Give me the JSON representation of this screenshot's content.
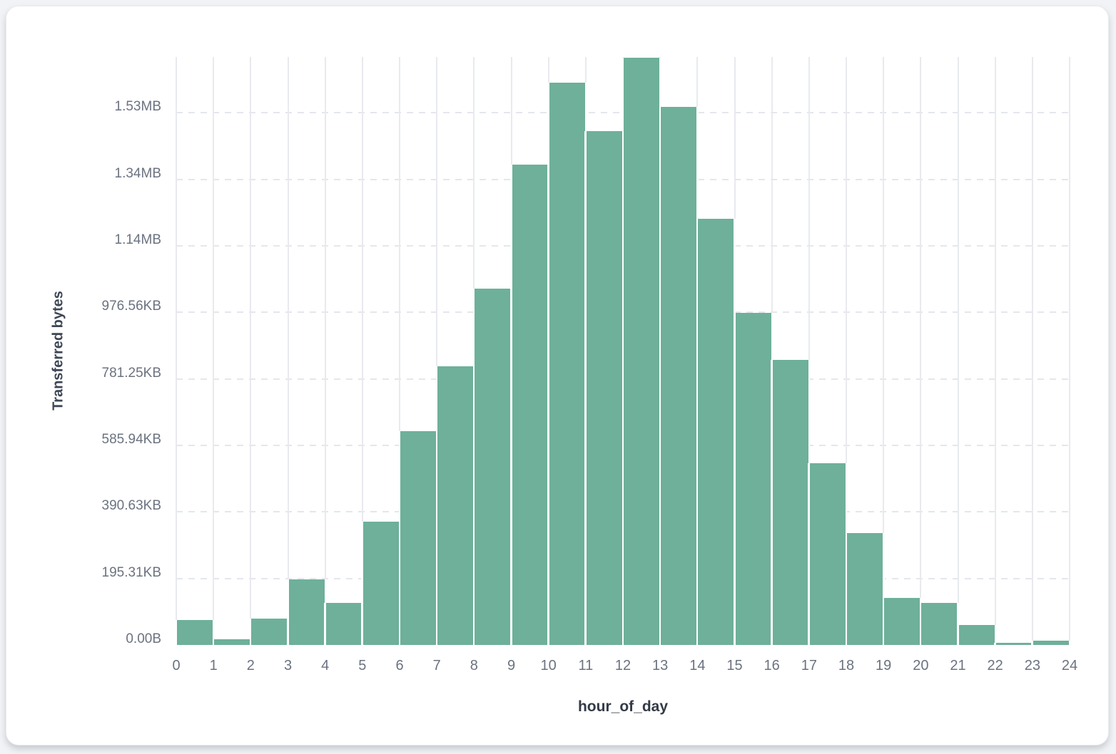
{
  "page": {
    "background_color": "#f2f3f6",
    "card_background_color": "#ffffff"
  },
  "chart_data": {
    "type": "bar",
    "title": "",
    "xlabel": "hour_of_day",
    "ylabel": "Transferred bytes",
    "bar_color": "#6EB09A",
    "legend_position": "none",
    "grid": {
      "vertical": "solid",
      "horizontal": "dashed"
    },
    "x_axis": {
      "range": [
        0,
        24
      ],
      "tick_labels": [
        "0",
        "1",
        "2",
        "3",
        "4",
        "5",
        "6",
        "7",
        "8",
        "9",
        "10",
        "11",
        "12",
        "13",
        "14",
        "15",
        "16",
        "17",
        "18",
        "19",
        "20",
        "21",
        "22",
        "23",
        "24"
      ]
    },
    "y_axis": {
      "min_kb": 0,
      "max_kb": 1726,
      "tick_step_kb": 195.3125,
      "tick_labels": [
        "0.00B",
        "195.31KB",
        "390.63KB",
        "585.94KB",
        "781.25KB",
        "976.56KB",
        "1.14MB",
        "1.34MB",
        "1.53MB"
      ]
    },
    "bin_edges": [
      0,
      1,
      2,
      3,
      4,
      5,
      6,
      7,
      8,
      9,
      10,
      11,
      12,
      13,
      14,
      15,
      16,
      17,
      18,
      19,
      20,
      21,
      22,
      23,
      24
    ],
    "values_kb": [
      73.2,
      16.7,
      77.4,
      192.5,
      123.5,
      362.0,
      627.8,
      818.2,
      1046.3,
      1410.5,
      1651.1,
      1508.8,
      1724.4,
      1580.0,
      1251.4,
      975.2,
      837.1,
      533.6,
      328.6,
      138.1,
      123.5,
      58.6,
      6.3,
      12.6
    ]
  }
}
